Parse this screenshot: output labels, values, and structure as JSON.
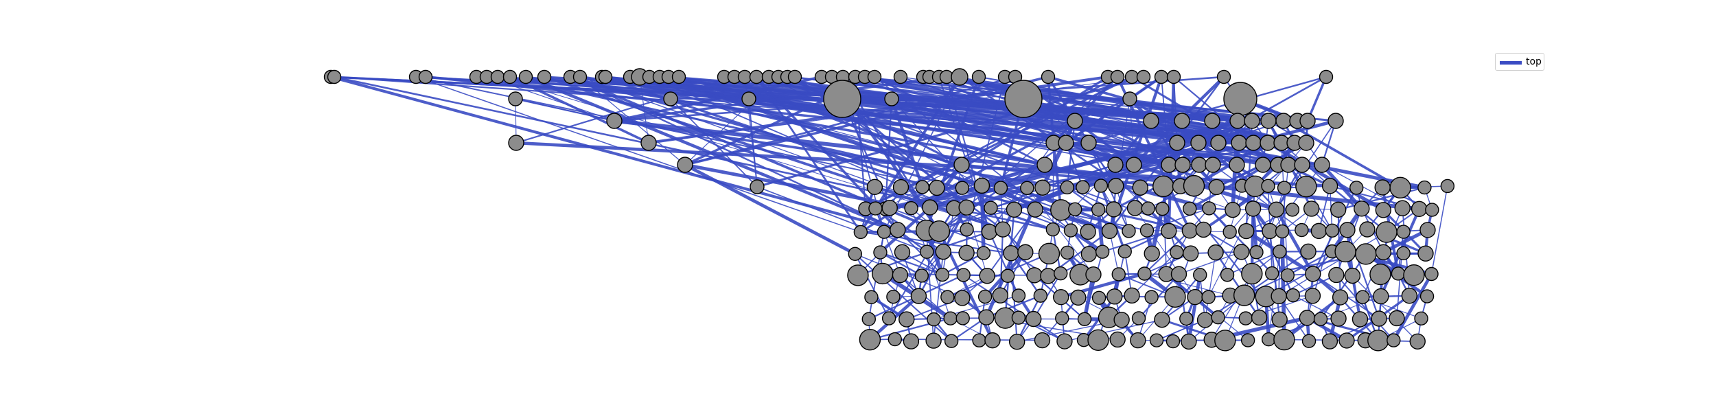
{
  "legend": {
    "label": "top",
    "color": "#3a4bc3"
  },
  "colors": {
    "edge": "#3a4bc3",
    "node_fill": "#8c8c8c",
    "node_stroke": "#000000"
  }
}
